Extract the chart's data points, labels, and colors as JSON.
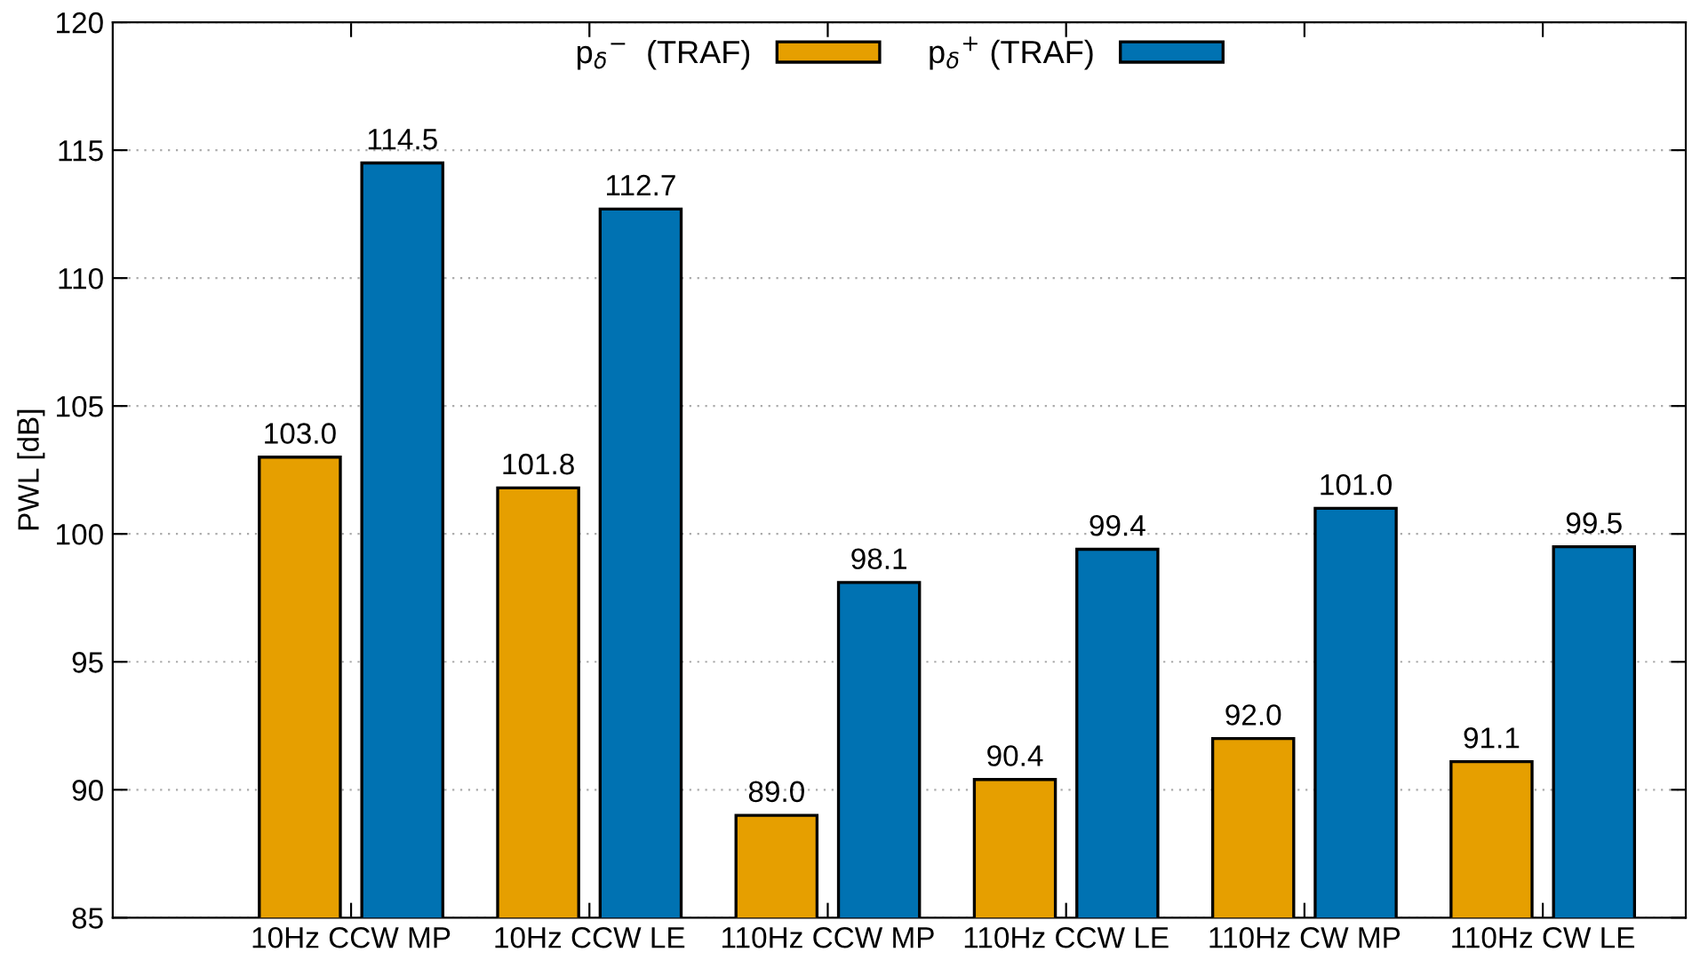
{
  "chart_data": {
    "type": "bar",
    "ylabel": "PWL [dB]",
    "categories": [
      "10Hz CCW MP",
      "10Hz CCW LE",
      "110Hz CCW MP",
      "110Hz CCW LE",
      "110Hz CW MP",
      "110Hz CW LE"
    ],
    "series": [
      {
        "name": "p$_{δ}$$^{−}$  (TRAF)",
        "color": "#e69f00",
        "values": [
          103.0,
          101.8,
          89.0,
          90.4,
          92.0,
          91.1
        ],
        "value_labels": [
          "103.0",
          "101.8",
          "89.0",
          "90.4",
          "92.0",
          "91.1"
        ]
      },
      {
        "name": "p$_{δ}$$^{+}$ (TRAF)",
        "color": "#0072b2",
        "values": [
          114.5,
          112.7,
          98.1,
          99.4,
          101.0,
          99.5
        ],
        "value_labels": [
          "114.5",
          "112.7",
          "98.1",
          "99.4",
          "101.0",
          "99.5"
        ]
      }
    ],
    "ylim": [
      85,
      120
    ],
    "yticks": [
      85,
      90,
      95,
      100,
      105,
      110,
      115,
      120
    ],
    "grid": "y",
    "legend": "top"
  }
}
